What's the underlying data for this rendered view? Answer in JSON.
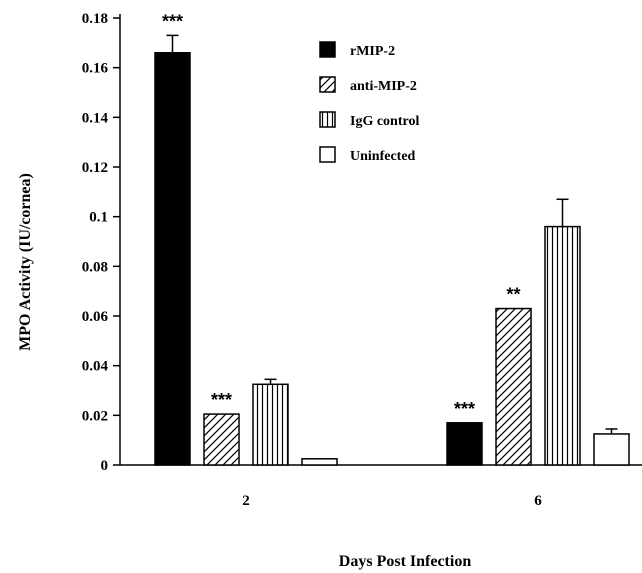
{
  "chart_data": {
    "type": "bar",
    "xlabel": "Days Post Infection",
    "ylabel": "MPO Activity (IU/cornea)",
    "ylim": [
      0,
      0.18
    ],
    "yticks": [
      "0",
      "0.02",
      "0.04",
      "0.06",
      "0.08",
      "0.1",
      "0.12",
      "0.14",
      "0.16",
      "0.18"
    ],
    "categories": [
      "2",
      "6"
    ],
    "legend_position": "top-right",
    "series": [
      {
        "name": "rMIP-2",
        "pattern": "solid",
        "values": [
          0.166,
          0.017
        ],
        "errors": [
          0.007,
          0
        ],
        "sig": [
          "***",
          "***"
        ]
      },
      {
        "name": "anti-MIP-2",
        "pattern": "diagonal",
        "values": [
          0.0205,
          0.063
        ],
        "errors": [
          0,
          0
        ],
        "sig": [
          "***",
          "**"
        ]
      },
      {
        "name": "IgG control",
        "pattern": "vertical",
        "values": [
          0.0325,
          0.096
        ],
        "errors": [
          0.002,
          0.011
        ],
        "sig": [
          "",
          ""
        ]
      },
      {
        "name": "Uninfected",
        "pattern": "open",
        "values": [
          0.0025,
          0.0125
        ],
        "errors": [
          0,
          0.002
        ],
        "sig": [
          "",
          ""
        ]
      }
    ]
  }
}
